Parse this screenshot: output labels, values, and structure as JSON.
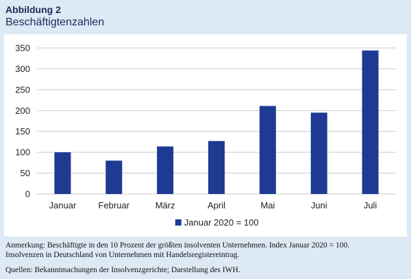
{
  "figure": {
    "label": "Abbildung 2",
    "title": "Beschäftigtenzahlen"
  },
  "chart_data": {
    "type": "bar",
    "categories": [
      "Januar",
      "Februar",
      "März",
      "April",
      "Mai",
      "Juni",
      "Juli"
    ],
    "series": [
      {
        "name": "Januar 2020 = 100",
        "values": [
          100,
          80,
          114,
          127,
          211,
          195,
          344
        ],
        "color": "#1f3a93"
      }
    ],
    "yticks": [
      0,
      50,
      100,
      150,
      200,
      250,
      300,
      350
    ],
    "ylim": [
      0,
      350
    ],
    "grid": true,
    "legend": "bottom",
    "title": "",
    "xlabel": "",
    "ylabel": ""
  },
  "notes": {
    "annotation_line1": "Anmerkung: Beschäftigte in den 10 Prozent der größten insolventen Unternehmen. Index Januar 2020 = 100.",
    "annotation_line2": "Insolvenzen in Deutschland von Unternehmen mit Handelsregistereintrag.",
    "sources": "Quellen: Bekanntmachungen der Insolvenzgerichte; Darstellung des IWH."
  }
}
